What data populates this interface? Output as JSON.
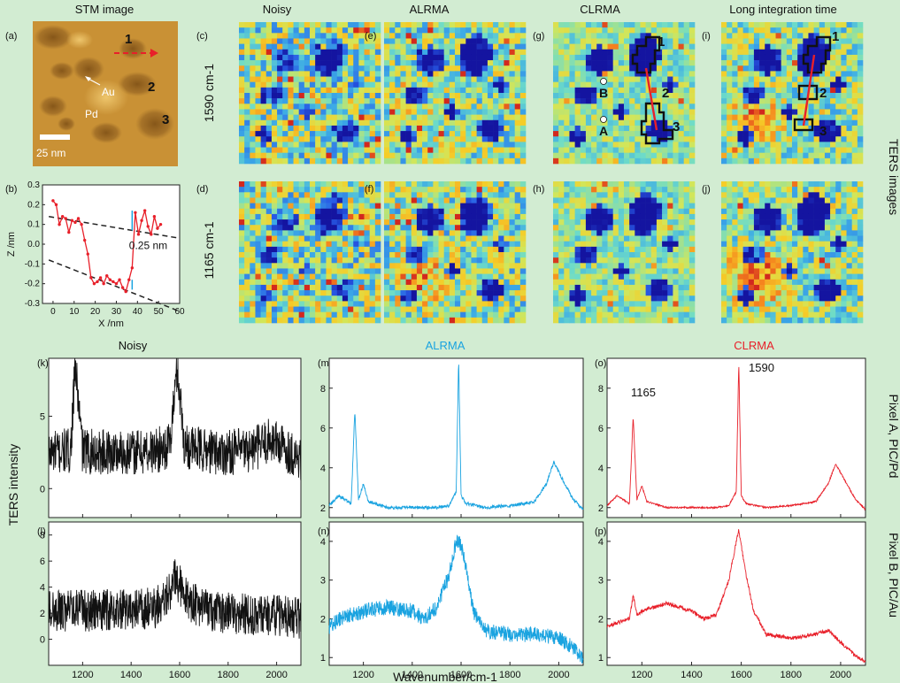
{
  "stm": {
    "header": "STM image",
    "panel_label": "(a)",
    "labels": [
      "1",
      "2",
      "3"
    ],
    "au_label": "Au",
    "pd_label": "Pd",
    "scalebar_label": "25 nm"
  },
  "profile": {
    "panel_label": "(b)",
    "xlabel": "X /nm",
    "ylabel": "Z /nm",
    "annotation": "0.25 nm",
    "x_ticks": [
      "0",
      "10",
      "20",
      "30",
      "40",
      "50",
      "60"
    ],
    "y_ticks": [
      "0.3",
      "0.2",
      "0.1",
      "0.0",
      "-0.1",
      "-0.2",
      "-0.3"
    ]
  },
  "maps": {
    "col_headers": [
      "Noisy",
      "ALRMA",
      "CLRMA",
      "Long integration time"
    ],
    "row_labels": [
      "1590 cm-1",
      "1165 cm-1"
    ],
    "panel_labels_top": [
      "(c)",
      "(e)",
      "(g)",
      "(i)"
    ],
    "panel_labels_bottom": [
      "(d)",
      "(f)",
      "(h)",
      "(j)"
    ],
    "side_label": "TERS images",
    "pixel_labels": [
      "B",
      "A"
    ],
    "region_labels": [
      "1",
      "2",
      "3"
    ]
  },
  "spectra": {
    "col_headers": [
      "Noisy",
      "ALRMA",
      "CLRMA"
    ],
    "header_colors": [
      "#222222",
      "#1aa3e0",
      "#e8202a"
    ],
    "ylabel": "TERS intensity",
    "xlabel": "Wavenumber/cm-1",
    "row_labels": [
      "Pixel A, PIC/Pd",
      "Pixel B, PIC/Au"
    ],
    "peak_labels": [
      "1165",
      "1590"
    ],
    "x_ticks": [
      "1200",
      "1400",
      "1600",
      "1800",
      "2000"
    ],
    "panel_labels_top": [
      "(k)",
      "(m)",
      "(o)"
    ],
    "panel_labels_bottom": [
      "(l)",
      "(n)",
      "(p)"
    ]
  },
  "chart_data": [
    {
      "type": "line",
      "title": "",
      "xlabel": "X /nm",
      "ylabel": "Z /nm",
      "xlim": [
        -5,
        60
      ],
      "ylim": [
        -0.3,
        0.3
      ],
      "series": [
        {
          "x": [
            0,
            1.5,
            3,
            4.5,
            6,
            7.5,
            9,
            10.5,
            12,
            13.5,
            15,
            16.5,
            18,
            19.5,
            21,
            22.5,
            24,
            25.5,
            27,
            28.5,
            30,
            31.5,
            33,
            34.5,
            36,
            37.5,
            39,
            40.5,
            42,
            43.5,
            45,
            46.5,
            48,
            49.5,
            51
          ],
          "values": [
            0.22,
            0.2,
            0.1,
            0.14,
            0.13,
            0.06,
            0.12,
            0.11,
            0.13,
            0.1,
            0.02,
            -0.05,
            -0.17,
            -0.2,
            -0.19,
            -0.17,
            -0.2,
            -0.16,
            -0.18,
            -0.19,
            -0.2,
            -0.18,
            -0.22,
            -0.24,
            -0.18,
            -0.12,
            0.16,
            0.05,
            0.12,
            0.17,
            0.09,
            0.05,
            0.14,
            0.08,
            0.1
          ]
        }
      ],
      "annotations": [
        "0.25 nm"
      ]
    },
    {
      "type": "line",
      "title": "Noisy",
      "panel": "(k)",
      "xlim": [
        1060,
        2100
      ],
      "ylim": [
        -2,
        9
      ],
      "y_ticks": [
        0,
        5
      ],
      "series": [
        {
          "x": [
            1060,
            1100,
            1150,
            1170,
            1200,
            1300,
            1400,
            1500,
            1560,
            1590,
            1620,
            1700,
            1800,
            1900,
            1980,
            2050,
            2100
          ],
          "values": [
            2.5,
            2.5,
            2.6,
            8.5,
            2.6,
            2.5,
            2.5,
            2.6,
            3.0,
            8.5,
            3.0,
            2.6,
            2.5,
            2.7,
            3.4,
            2.6,
            2.0
          ]
        }
      ]
    },
    {
      "type": "line",
      "title": "ALRMA",
      "panel": "(m)",
      "xlim": [
        1060,
        2100
      ],
      "ylim": [
        1.5,
        9.5
      ],
      "y_ticks": [
        2,
        4,
        6,
        8
      ],
      "series": [
        {
          "x": [
            1060,
            1100,
            1150,
            1165,
            1180,
            1200,
            1220,
            1300,
            1400,
            1500,
            1550,
            1580,
            1590,
            1600,
            1620,
            1700,
            1800,
            1900,
            1950,
            1980,
            2020,
            2060,
            2100
          ],
          "values": [
            2.1,
            2.6,
            2.2,
            6.9,
            2.4,
            3.2,
            2.3,
            2.0,
            2.0,
            2.0,
            2.1,
            2.8,
            9.4,
            2.6,
            2.2,
            2.0,
            2.1,
            2.3,
            3.2,
            4.3,
            3.3,
            2.4,
            1.9
          ]
        }
      ]
    },
    {
      "type": "line",
      "title": "CLRMA",
      "panel": "(o)",
      "xlim": [
        1060,
        2100
      ],
      "ylim": [
        1.5,
        9.5
      ],
      "y_ticks": [
        2,
        4,
        6,
        8
      ],
      "series": [
        {
          "x": [
            1060,
            1100,
            1150,
            1165,
            1180,
            1200,
            1220,
            1300,
            1400,
            1500,
            1550,
            1580,
            1590,
            1600,
            1620,
            1700,
            1800,
            1900,
            1950,
            1980,
            2020,
            2060,
            2100
          ],
          "values": [
            2.1,
            2.6,
            2.2,
            6.6,
            2.4,
            3.1,
            2.3,
            2.0,
            2.0,
            2.0,
            2.1,
            2.8,
            9.3,
            2.6,
            2.2,
            2.0,
            2.1,
            2.3,
            3.2,
            4.2,
            3.3,
            2.4,
            1.9
          ]
        }
      ]
    },
    {
      "type": "line",
      "title": "",
      "panel": "(l)",
      "xlim": [
        1060,
        2100
      ],
      "ylim": [
        -2,
        9
      ],
      "y_ticks": [
        0,
        2,
        4,
        6,
        8
      ],
      "series": [
        {
          "x": [
            1060,
            1100,
            1200,
            1300,
            1400,
            1500,
            1550,
            1580,
            1600,
            1650,
            1700,
            1800,
            1900,
            2000,
            2050,
            2100
          ],
          "values": [
            2.2,
            2.2,
            2.2,
            2.2,
            2.3,
            2.4,
            3.3,
            4.6,
            4.2,
            2.8,
            2.3,
            2.0,
            1.9,
            1.8,
            1.8,
            1.6
          ]
        }
      ]
    },
    {
      "type": "line",
      "title": "",
      "panel": "(n)",
      "xlim": [
        1060,
        2100
      ],
      "ylim": [
        0.8,
        4.5
      ],
      "y_ticks": [
        1,
        2,
        3,
        4
      ],
      "series": [
        {
          "x": [
            1060,
            1100,
            1200,
            1300,
            1400,
            1450,
            1500,
            1550,
            1580,
            1600,
            1620,
            1650,
            1700,
            1800,
            1900,
            2000,
            2050,
            2100
          ],
          "values": [
            1.8,
            2.0,
            2.2,
            2.3,
            2.2,
            2.0,
            2.3,
            3.1,
            4.0,
            3.9,
            3.3,
            2.2,
            1.7,
            1.6,
            1.6,
            1.5,
            1.3,
            1.0
          ]
        }
      ]
    },
    {
      "type": "line",
      "title": "",
      "panel": "(p)",
      "xlim": [
        1060,
        2100
      ],
      "ylim": [
        0.8,
        4.5
      ],
      "y_ticks": [
        1,
        2,
        3,
        4
      ],
      "series": [
        {
          "x": [
            1060,
            1100,
            1150,
            1165,
            1180,
            1200,
            1300,
            1400,
            1450,
            1500,
            1550,
            1580,
            1590,
            1600,
            1620,
            1650,
            1700,
            1800,
            1900,
            1950,
            2000,
            2050,
            2100
          ],
          "values": [
            1.8,
            1.9,
            2.0,
            2.6,
            2.1,
            2.2,
            2.4,
            2.2,
            2.0,
            2.1,
            3.0,
            4.0,
            4.3,
            3.9,
            3.1,
            2.2,
            1.6,
            1.5,
            1.6,
            1.7,
            1.4,
            1.1,
            0.9
          ]
        }
      ]
    }
  ]
}
